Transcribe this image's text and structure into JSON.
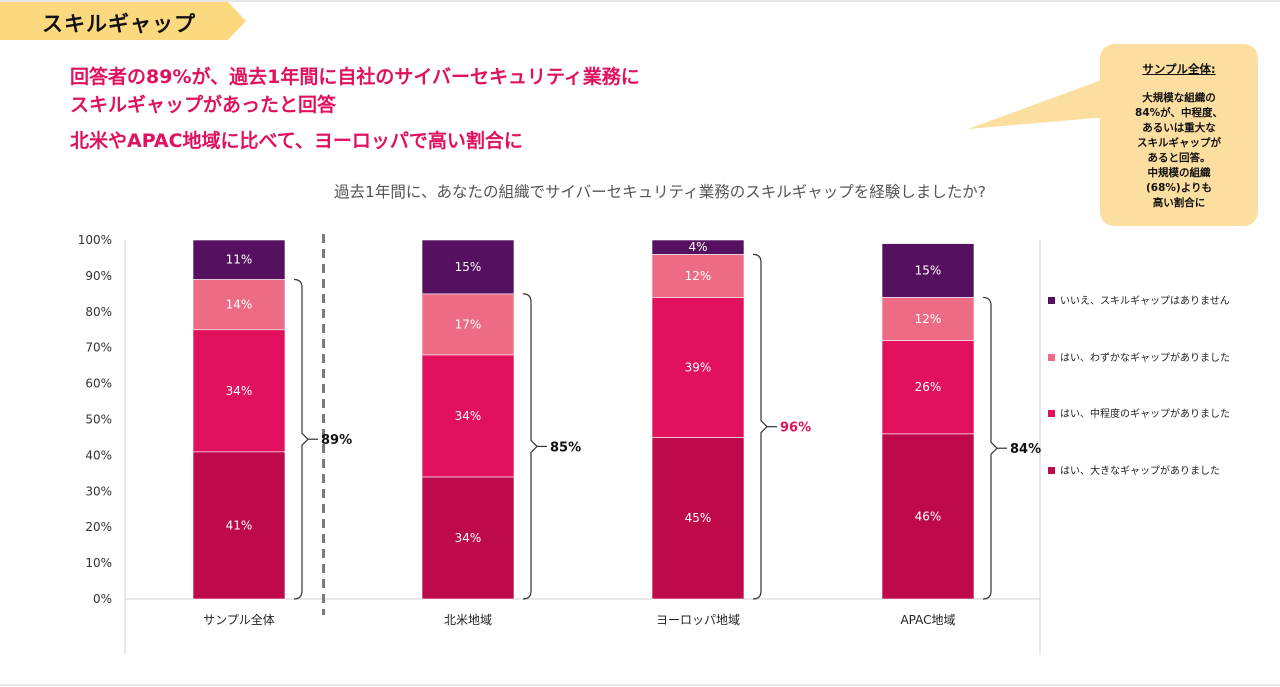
{
  "section_tag": "スキルギャップ",
  "headlines": [
    "回答者の89%が、過去1年間に自社のサイバーセキュリティ業務に",
    "スキルギャップがあったと回答",
    "北米やAPAC地域に比べて、ヨーロッパで高い割合に"
  ],
  "callout": {
    "title": "サンプル全体:",
    "body": "大規模な組織の\n84%が、中程度、\nあるいは重大な\nスキルギャップが\nあると回答。\n中規模の組織\n(68%)よりも\n高い割合に"
  },
  "colors": {
    "headline": "#e0115f",
    "callout_bg": "#fcdfa0",
    "tag_bg": "#fcd97f",
    "highlight_total": "#e0115f"
  },
  "chart_data": {
    "type": "bar",
    "stacked": true,
    "title": "過去1年間に、あなたの組織でサイバーセキュリティ業務のスキルギャップを経験しましたか?",
    "categories": [
      "サンプル全体",
      "北米地域",
      "ヨーロッパ地域",
      "APAC地域"
    ],
    "series": [
      {
        "name": "はい、大きなギャップがありました",
        "color": "#be0a4b",
        "values": [
          41,
          34,
          45,
          46
        ]
      },
      {
        "name": "はい、中程度のギャップがありました",
        "color": "#e1115e",
        "values": [
          34,
          34,
          39,
          26
        ]
      },
      {
        "name": "はい、わずかなギャップがありました",
        "color": "#ee6b85",
        "values": [
          14,
          17,
          12,
          12
        ]
      },
      {
        "name": "いいえ、スキルギャップはありません",
        "color": "#561060",
        "values": [
          11,
          15,
          4,
          15
        ]
      }
    ],
    "yes_totals": [
      "89%",
      "85%",
      "96%",
      "84%"
    ],
    "highlighted_total_index": 2,
    "yticks": [
      "0%",
      "10%",
      "20%",
      "30%",
      "40%",
      "50%",
      "60%",
      "70%",
      "80%",
      "90%",
      "100%"
    ],
    "ylim": [
      0,
      100
    ],
    "legend_position": "right",
    "legend_order": [
      3,
      2,
      1,
      0
    ],
    "separator_after_category": 0
  }
}
